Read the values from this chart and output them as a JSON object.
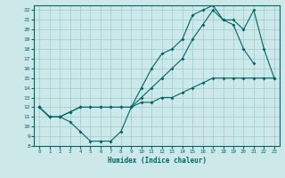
{
  "xlabel": "Humidex (Indice chaleur)",
  "background_color": "#cce8e8",
  "grid_color": "#99cccc",
  "line_color": "#006666",
  "xlim": [
    -0.5,
    23.5
  ],
  "ylim": [
    8,
    22.5
  ],
  "xticks": [
    0,
    1,
    2,
    3,
    4,
    5,
    6,
    7,
    8,
    9,
    10,
    11,
    12,
    13,
    14,
    15,
    16,
    17,
    18,
    19,
    20,
    21,
    22,
    23
  ],
  "yticks": [
    8,
    9,
    10,
    11,
    12,
    13,
    14,
    15,
    16,
    17,
    18,
    19,
    20,
    21,
    22
  ],
  "line1_x": [
    0,
    1,
    2,
    3,
    4,
    5,
    6,
    7,
    8,
    9,
    10,
    11,
    12,
    13,
    14,
    15,
    16,
    17,
    18,
    19,
    20,
    21
  ],
  "line1_y": [
    12,
    11,
    11,
    10.5,
    9.5,
    8.5,
    8.5,
    8.5,
    9.5,
    12,
    14,
    16,
    17.5,
    18,
    19,
    21.5,
    22,
    22.5,
    21,
    20.5,
    18,
    16.5
  ],
  "line2_x": [
    0,
    1,
    2,
    3,
    4,
    5,
    6,
    7,
    8,
    9,
    10,
    11,
    12,
    13,
    14,
    15,
    16,
    17,
    18,
    19,
    20,
    21,
    22,
    23
  ],
  "line2_y": [
    12,
    11,
    11,
    11.5,
    12,
    12,
    12,
    12,
    12,
    12,
    12.5,
    12.5,
    13,
    13,
    13.5,
    14,
    14.5,
    15,
    15,
    15,
    15,
    15,
    15,
    15
  ],
  "line3_x": [
    0,
    1,
    2,
    3,
    4,
    5,
    6,
    7,
    8,
    9,
    10,
    11,
    12,
    13,
    14,
    15,
    16,
    17,
    18,
    19,
    20,
    21,
    22,
    23
  ],
  "line3_y": [
    12,
    11,
    11,
    11.5,
    12,
    12,
    12,
    12,
    12,
    12,
    13,
    14,
    15,
    16,
    17,
    19,
    20.5,
    22,
    21,
    21,
    20,
    22,
    18,
    15
  ]
}
